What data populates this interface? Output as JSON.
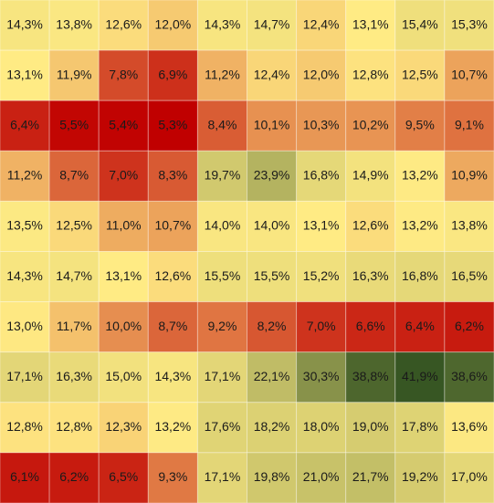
{
  "chart_data": {
    "type": "heatmap",
    "values": [
      [
        14.3,
        13.8,
        12.6,
        12.0,
        14.3,
        14.7,
        12.4,
        13.1,
        15.4,
        15.3
      ],
      [
        13.1,
        11.9,
        7.8,
        6.9,
        11.2,
        12.4,
        12.0,
        12.8,
        12.5,
        10.7
      ],
      [
        6.4,
        5.5,
        5.4,
        5.3,
        8.4,
        10.1,
        10.3,
        10.2,
        9.5,
        9.1
      ],
      [
        11.2,
        8.7,
        7.0,
        8.3,
        19.7,
        23.9,
        16.8,
        14.9,
        13.2,
        10.9
      ],
      [
        13.5,
        12.5,
        11.0,
        10.7,
        14.0,
        14.0,
        13.1,
        12.6,
        13.2,
        13.8
      ],
      [
        14.3,
        14.7,
        13.1,
        12.6,
        15.5,
        15.5,
        15.2,
        16.3,
        16.8,
        16.5
      ],
      [
        13.0,
        11.7,
        10.0,
        8.7,
        9.2,
        8.2,
        7.0,
        6.6,
        6.4,
        6.2
      ],
      [
        17.1,
        16.3,
        15.0,
        14.3,
        17.1,
        22.1,
        30.3,
        38.8,
        41.9,
        38.6
      ],
      [
        12.8,
        12.8,
        12.3,
        13.2,
        17.6,
        18.2,
        18.0,
        19.0,
        17.8,
        13.6
      ],
      [
        6.1,
        6.2,
        6.5,
        9.3,
        17.1,
        19.8,
        21.0,
        21.7,
        19.2,
        17.0
      ]
    ],
    "value_labels": [
      [
        "14,3%",
        "13,8%",
        "12,6%",
        "12,0%",
        "14,3%",
        "14,7%",
        "12,4%",
        "13,1%",
        "15,4%",
        "15,3%"
      ],
      [
        "13,1%",
        "11,9%",
        "7,8%",
        "6,9%",
        "11,2%",
        "12,4%",
        "12,0%",
        "12,8%",
        "12,5%",
        "10,7%"
      ],
      [
        "6,4%",
        "5,5%",
        "5,4%",
        "5,3%",
        "8,4%",
        "10,1%",
        "10,3%",
        "10,2%",
        "9,5%",
        "9,1%"
      ],
      [
        "11,2%",
        "8,7%",
        "7,0%",
        "8,3%",
        "19,7%",
        "23,9%",
        "16,8%",
        "14,9%",
        "13,2%",
        "10,9%"
      ],
      [
        "13,5%",
        "12,5%",
        "11,0%",
        "10,7%",
        "14,0%",
        "14,0%",
        "13,1%",
        "12,6%",
        "13,2%",
        "13,8%"
      ],
      [
        "14,3%",
        "14,7%",
        "13,1%",
        "12,6%",
        "15,5%",
        "15,5%",
        "15,2%",
        "16,3%",
        "16,8%",
        "16,5%"
      ],
      [
        "13,0%",
        "11,7%",
        "10,0%",
        "8,7%",
        "9,2%",
        "8,2%",
        "7,0%",
        "6,6%",
        "6,4%",
        "6,2%"
      ],
      [
        "17,1%",
        "16,3%",
        "15,0%",
        "14,3%",
        "17,1%",
        "22,1%",
        "30,3%",
        "38,8%",
        "41,9%",
        "38,6%"
      ],
      [
        "12,8%",
        "12,8%",
        "12,3%",
        "13,2%",
        "17,6%",
        "18,2%",
        "18,0%",
        "19,0%",
        "17,8%",
        "13,6%"
      ],
      [
        "6,1%",
        "6,2%",
        "6,5%",
        "9,3%",
        "17,1%",
        "19,8%",
        "21,0%",
        "21,7%",
        "19,2%",
        "17,0%"
      ]
    ],
    "color_scale": {
      "min_color": "#c00000",
      "mid_color": "#ffeb84",
      "max_color": "#375623"
    }
  }
}
